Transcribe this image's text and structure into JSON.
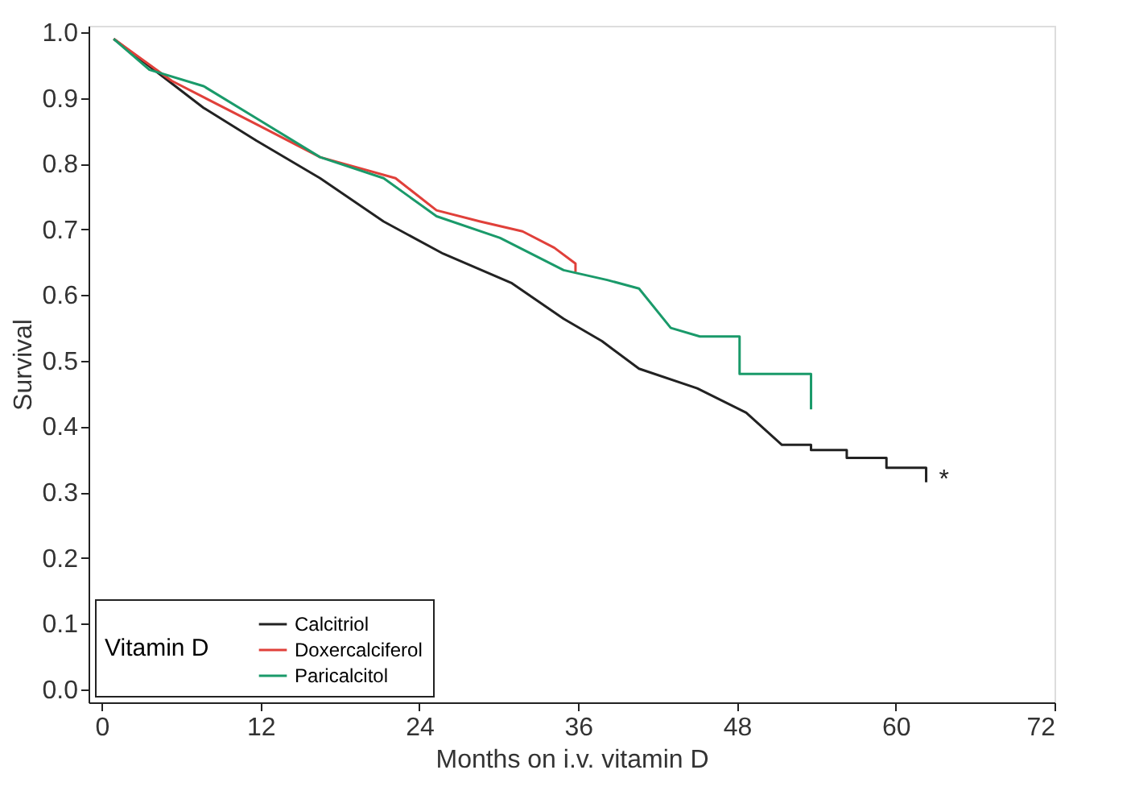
{
  "chart_data": {
    "type": "line",
    "xlabel": "Months on i.v. vitamin D",
    "ylabel": "Survival",
    "legend_title": "Vitamin D",
    "legend": "bottom left",
    "grid": false,
    "marker": "none",
    "line_style": "solid",
    "xlim": [
      -1,
      72
    ],
    "ylim": [
      -0.02,
      1.01
    ],
    "xticks": [
      0,
      12,
      24,
      36,
      48,
      60,
      72
    ],
    "yticks": [
      {
        "value": 0,
        "label": "0.0"
      },
      {
        "value": 0.1,
        "label": "0.1"
      },
      {
        "value": 0.2,
        "label": "0.2"
      },
      {
        "value": 0.3,
        "label": "0.3"
      },
      {
        "value": 0.4,
        "label": "0.4"
      },
      {
        "value": 0.5,
        "label": "0.5"
      },
      {
        "value": 0.6,
        "label": "0.6"
      },
      {
        "value": 0.7,
        "label": "0.7"
      },
      {
        "value": 0.8,
        "label": "0.8"
      },
      {
        "value": 0.9,
        "label": "0.9"
      },
      {
        "value": 1,
        "label": "1.0"
      }
    ],
    "series": [
      {
        "name": "Calcitriol",
        "color": "#222222",
        "x": [
          0.9,
          7.7,
          11.7,
          16.5,
          21.3,
          25.8,
          31,
          34.9,
          37.8,
          40.6,
          45,
          48.7,
          51.4,
          53.6,
          53.6,
          56.3,
          56.3,
          59.3,
          59.3,
          62.3,
          62.3
        ],
        "values": [
          0.99,
          0.885,
          0.835,
          0.778,
          0.712,
          0.663,
          0.618,
          0.564,
          0.53,
          0.488,
          0.458,
          0.421,
          0.372,
          0.372,
          0.364,
          0.364,
          0.352,
          0.352,
          0.337,
          0.337,
          0.315
        ]
      },
      {
        "name": "Doxercalciferol",
        "color": "#e0403a",
        "x": [
          0.9,
          5.3,
          11.7,
          16.5,
          22.2,
          25.3,
          28.6,
          31.8,
          34.2,
          35.8,
          35.8
        ],
        "values": [
          0.99,
          0.926,
          0.86,
          0.81,
          0.778,
          0.729,
          0.712,
          0.697,
          0.672,
          0.648,
          0.635
        ]
      },
      {
        "name": "Paricalcitol",
        "color": "#1a9a6a",
        "x": [
          0.9,
          3.6,
          7.7,
          11.7,
          16.5,
          21.3,
          25.3,
          30.1,
          34.9,
          38.2,
          40.6,
          43,
          45.2,
          48.2,
          48.2,
          53.6,
          53.6
        ],
        "values": [
          0.99,
          0.943,
          0.918,
          0.869,
          0.81,
          0.778,
          0.72,
          0.687,
          0.638,
          0.623,
          0.61,
          0.55,
          0.537,
          0.537,
          0.48,
          0.48,
          0.426
        ]
      }
    ],
    "annotations": [
      "*"
    ]
  }
}
